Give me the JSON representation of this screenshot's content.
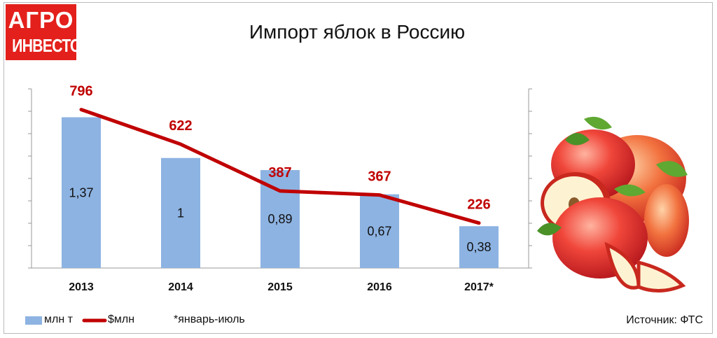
{
  "logo": {
    "line1": "АГРО",
    "line2": "ИНВЕСТОР"
  },
  "title": "Импорт яблок в Россию",
  "chart_data": {
    "type": "bar",
    "categories": [
      "2013",
      "2014",
      "2015",
      "2016",
      "2017*"
    ],
    "series": [
      {
        "name": "млн т",
        "kind": "bar",
        "values": [
          1.37,
          1.0,
          0.89,
          0.67,
          0.38
        ],
        "labels": [
          "1,37",
          "1",
          "0,89",
          "0,67",
          "0,38"
        ],
        "color": "#8db3e2"
      },
      {
        "name": "$млн",
        "kind": "line",
        "values": [
          796,
          622,
          387,
          367,
          226
        ],
        "labels": [
          "796",
          "622",
          "387",
          "367",
          "226"
        ],
        "color": "#c00000"
      }
    ],
    "y_left_range": [
      0,
      1.4
    ],
    "y_right_range": [
      0,
      900
    ],
    "grid": false,
    "legend_position": "bottom-left"
  },
  "legend": {
    "bar_label": "млн т",
    "line_label": "$млн"
  },
  "footnote": "*январь-июль",
  "source": "Источник: ФТС",
  "image": {
    "icon": "apples-illustration-icon"
  }
}
